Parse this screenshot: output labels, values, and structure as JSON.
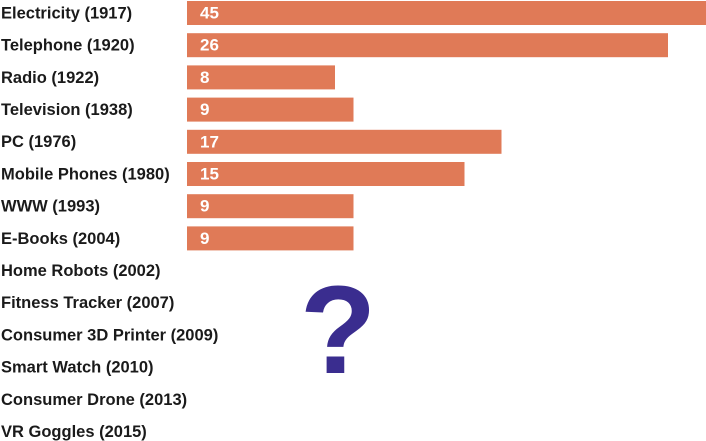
{
  "chart_data": {
    "type": "bar",
    "orientation": "horizontal",
    "categories": [
      "Electricity (1917)",
      "Telephone (1920)",
      "Radio (1922)",
      "Television (1938)",
      "PC (1976)",
      "Mobile Phones (1980)",
      "WWW (1993)",
      "E-Books (2004)",
      "Home Robots (2002)",
      "Fitness Tracker (2007)",
      "Consumer 3D Printer (2009)",
      "Smart Watch (2010)",
      "Consumer Drone (2013)",
      "VR Goggles (2015)"
    ],
    "values": [
      45,
      26,
      8,
      9,
      17,
      15,
      9,
      9,
      null,
      null,
      null,
      null,
      null,
      null
    ],
    "color": "#e07a57",
    "annotation": "?"
  }
}
